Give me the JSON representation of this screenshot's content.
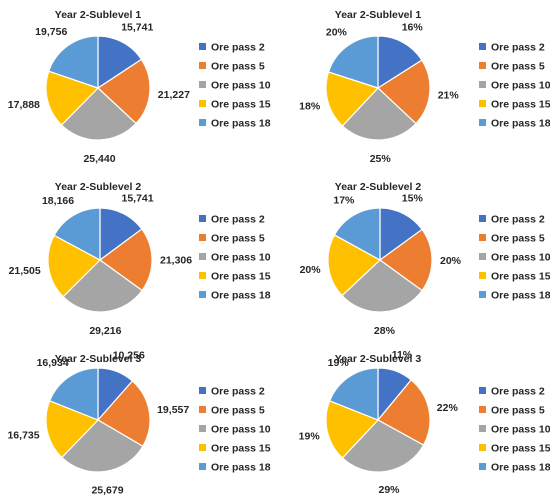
{
  "colors": {
    "Ore pass 2": "#4472C4",
    "Ore pass 5": "#ED7D31",
    "Ore pass 10": "#A5A5A5",
    "Ore pass 15": "#FFC000",
    "Ore pass 18": "#5B9BD5"
  },
  "legend": [
    "Ore pass 2",
    "Ore pass 5",
    "Ore pass 10",
    "Ore pass 15",
    "Ore pass 18"
  ],
  "chart_data": [
    {
      "type": "pie",
      "title": "Year 2-Sublevel 1",
      "categories": [
        "Ore pass 2",
        "Ore pass 5",
        "Ore pass 10",
        "Ore pass 15",
        "Ore pass 18"
      ],
      "values": [
        15741,
        21227,
        25440,
        17888,
        19756
      ],
      "data_labels": [
        "15,741",
        "21,227",
        "25,440",
        "17,888",
        "19,756"
      ],
      "legend": "right"
    },
    {
      "type": "pie",
      "title": "Year 2-Sublevel 1",
      "categories": [
        "Ore pass 2",
        "Ore pass 5",
        "Ore pass 10",
        "Ore pass 15",
        "Ore pass 18"
      ],
      "values": [
        16,
        21,
        25,
        18,
        20
      ],
      "data_labels": [
        "16%",
        "21%",
        "25%",
        "18%",
        "20%"
      ],
      "legend": "right"
    },
    {
      "type": "pie",
      "title": "Year 2-Sublevel 2",
      "categories": [
        "Ore pass 2",
        "Ore pass 5",
        "Ore pass 10",
        "Ore pass 15",
        "Ore pass 18"
      ],
      "values": [
        15741,
        21306,
        29216,
        21505,
        18166
      ],
      "data_labels": [
        "15,741",
        "21,306",
        "29,216",
        "21,505",
        "18,166"
      ],
      "legend": "right"
    },
    {
      "type": "pie",
      "title": "Year 2-Sublevel 2",
      "categories": [
        "Ore pass 2",
        "Ore pass 5",
        "Ore pass 10",
        "Ore pass 15",
        "Ore pass 18"
      ],
      "values": [
        15,
        20,
        28,
        20,
        17
      ],
      "data_labels": [
        "15%",
        "20%",
        "28%",
        "20%",
        "17%"
      ],
      "legend": "right"
    },
    {
      "type": "pie",
      "title": "Year 2-Sublevel 3",
      "categories": [
        "Ore pass 2",
        "Ore pass 5",
        "Ore pass 10",
        "Ore pass 15",
        "Ore pass 18"
      ],
      "values": [
        10256,
        19557,
        25679,
        16735,
        16934
      ],
      "data_labels": [
        "10,256",
        "19,557",
        "25,679",
        "16,735",
        "16,934"
      ],
      "legend": "right"
    },
    {
      "type": "pie",
      "title": "Year 2-Sublevel 3",
      "categories": [
        "Ore pass 2",
        "Ore pass 5",
        "Ore pass 10",
        "Ore pass 15",
        "Ore pass 18"
      ],
      "values": [
        11,
        22,
        29,
        19,
        19
      ],
      "data_labels": [
        "11%",
        "22%",
        "29%",
        "19%",
        "19%"
      ],
      "legend": "right"
    }
  ]
}
